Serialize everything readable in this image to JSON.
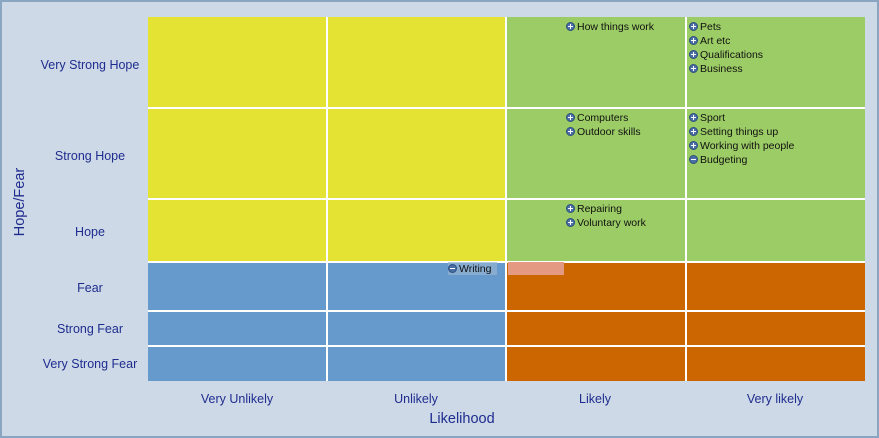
{
  "colors": {
    "frame_bg": "#cdd9e6",
    "frame_border": "#8aa5c1",
    "yellow": "#e4e233",
    "green": "#9ccc65",
    "blue": "#6699cc",
    "orange": "#cc6600",
    "label_color": "#1f2c8f",
    "highlight": "#e49a82"
  },
  "axes": {
    "y_title": "Hope/Fear",
    "x_title": "Likelihood",
    "rows": [
      "Very Strong Hope",
      "Strong Hope",
      "Hope",
      "Fear",
      "Strong Fear",
      "Very Strong Fear"
    ],
    "columns": [
      "Very Unlikely",
      "Unlikely",
      "Likely",
      "Very likely"
    ]
  },
  "grid": {
    "cells": [
      {
        "row": 0,
        "col": 0,
        "color": "yellow"
      },
      {
        "row": 0,
        "col": 1,
        "color": "yellow"
      },
      {
        "row": 0,
        "col": 2,
        "color": "green"
      },
      {
        "row": 0,
        "col": 3,
        "color": "green"
      },
      {
        "row": 1,
        "col": 0,
        "color": "yellow"
      },
      {
        "row": 1,
        "col": 1,
        "color": "yellow"
      },
      {
        "row": 1,
        "col": 2,
        "color": "green"
      },
      {
        "row": 1,
        "col": 3,
        "color": "green"
      },
      {
        "row": 2,
        "col": 0,
        "color": "yellow"
      },
      {
        "row": 2,
        "col": 1,
        "color": "yellow"
      },
      {
        "row": 2,
        "col": 2,
        "color": "green"
      },
      {
        "row": 2,
        "col": 3,
        "color": "green"
      },
      {
        "row": 3,
        "col": 0,
        "color": "blue"
      },
      {
        "row": 3,
        "col": 1,
        "color": "blue"
      },
      {
        "row": 3,
        "col": 2,
        "color": "orange"
      },
      {
        "row": 3,
        "col": 3,
        "color": "orange"
      },
      {
        "row": 4,
        "col": 0,
        "color": "blue"
      },
      {
        "row": 4,
        "col": 1,
        "color": "blue"
      },
      {
        "row": 4,
        "col": 2,
        "color": "orange"
      },
      {
        "row": 4,
        "col": 3,
        "color": "orange"
      },
      {
        "row": 5,
        "col": 0,
        "color": "blue"
      },
      {
        "row": 5,
        "col": 1,
        "color": "blue"
      },
      {
        "row": 5,
        "col": 2,
        "color": "orange"
      },
      {
        "row": 5,
        "col": 3,
        "color": "orange"
      }
    ],
    "items": [
      {
        "label": "How things work",
        "row": 0,
        "col": 2,
        "icon": "plus-icon"
      },
      {
        "label": "Pets",
        "row": 0,
        "col": 3,
        "icon": "plus-icon"
      },
      {
        "label": "Art etc",
        "row": 0,
        "col": 3,
        "icon": "plus-icon"
      },
      {
        "label": "Qualifications",
        "row": 0,
        "col": 3,
        "icon": "plus-icon"
      },
      {
        "label": "Business",
        "row": 0,
        "col": 3,
        "icon": "plus-icon"
      },
      {
        "label": "Computers",
        "row": 1,
        "col": 2,
        "icon": "plus-icon"
      },
      {
        "label": "Outdoor skills",
        "row": 1,
        "col": 2,
        "icon": "plus-icon"
      },
      {
        "label": "Sport",
        "row": 1,
        "col": 3,
        "icon": "plus-icon"
      },
      {
        "label": "Setting things up",
        "row": 1,
        "col": 3,
        "icon": "plus-icon"
      },
      {
        "label": "Working with people",
        "row": 1,
        "col": 3,
        "icon": "plus-icon"
      },
      {
        "label": "Budgeting",
        "row": 1,
        "col": 3,
        "icon": "minus-icon"
      },
      {
        "label": "Repairing",
        "row": 2,
        "col": 2,
        "icon": "plus-icon"
      },
      {
        "label": "Voluntary work",
        "row": 2,
        "col": 2,
        "icon": "plus-icon"
      },
      {
        "label": "Writing",
        "row": 3,
        "col": 1,
        "icon": "minus-icon"
      }
    ]
  }
}
